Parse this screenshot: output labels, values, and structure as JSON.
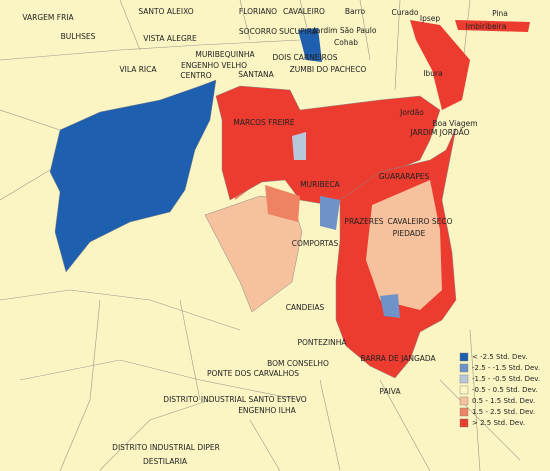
{
  "map": {
    "places": [
      "VARGEM FRIA",
      "SANTO ALEIXO",
      "FLORIANO",
      "CAVALEIRO",
      "Barro",
      "Curado",
      "Ipsep",
      "Pina",
      "Imbiribeira",
      "BULHSES",
      "VISTA ALEGRE",
      "SOCORRO",
      "SUCUPIRA",
      "Jardim São Paulo",
      "Cohab",
      "MURIBEQUINHA",
      "DOIS CARNEIROS",
      "ENGENHO VELHO",
      "VILA RICA",
      "CENTRO",
      "SANTANA",
      "ZUMBI DO PACHECO",
      "Ibura",
      "Jordão",
      "Boa Viagem",
      "MARCOS FREIRE",
      "JARDIM JORDÃO",
      "GUARARAPES",
      "MURIBECA",
      "PRAZERES",
      "CAVALEIRO SECO",
      "PIEDADE",
      "COMPORTAS",
      "CANDEIAS",
      "PONTEZINHA",
      "BOM CONSELHO",
      "BARRA DE JANGADA",
      "PONTE DOS CARVALHOS",
      "PAIVA",
      "DISTRITO INDUSTRIAL SANTO ESTEVO",
      "ENGENHO ILHA",
      "DISTRITO INDUSTRIAL DIPER",
      "DESTILARIA"
    ],
    "legend": [
      {
        "label": "< -2.5 Std. Dev.",
        "color": "#1f5fb0"
      },
      {
        "label": "-2.5 - -1.5 Std. Dev.",
        "color": "#6f93c8"
      },
      {
        "label": "-1.5 - -0.5 Std. Dev.",
        "color": "#b9c7dd"
      },
      {
        "label": "-0.5 - 0.5 Std. Dev.",
        "color": "#fbf5c3"
      },
      {
        "label": "0.5 - 1.5 Std. Dev.",
        "color": "#f6c29d"
      },
      {
        "label": "1.5 - 2.5 Std. Dev.",
        "color": "#ef8262"
      },
      {
        "label": "> 2.5 Std. Dev.",
        "color": "#ec3b2f"
      }
    ]
  }
}
